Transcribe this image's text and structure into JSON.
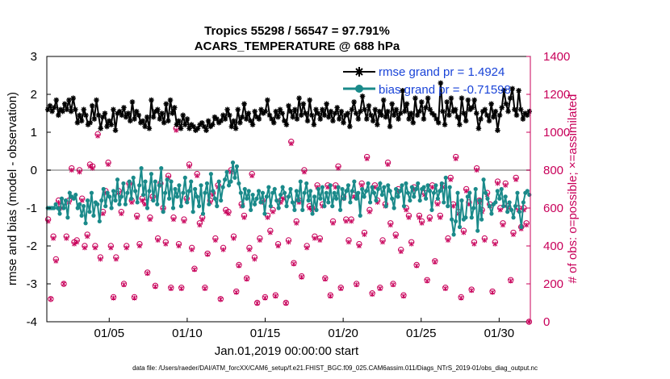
{
  "chart_data": {
    "type": "line",
    "title": "Tropics 55298 / 56547 = 97.791%",
    "subtitle": "ACARS_TEMPERATURE @ 688 hPa",
    "xlabel": "Jan.01,2019 00:00:00 start",
    "ylabel": "rmse and bias (model - observation)",
    "y2label": "# of obs: o=possible; ×=assimilated",
    "xlim": [
      1,
      32
    ],
    "ylim": [
      -4,
      3
    ],
    "y2lim": [
      0,
      1400
    ],
    "x_ticks": [
      5,
      10,
      15,
      20,
      25,
      30
    ],
    "x_tick_labels": [
      "01/05",
      "01/10",
      "01/15",
      "01/20",
      "01/25",
      "01/30"
    ],
    "y_ticks": [
      "3",
      "2",
      "1",
      "0",
      "-1",
      "-2",
      "-3",
      "-4"
    ],
    "y2_ticks": [
      "1400",
      "1200",
      "1000",
      "800",
      "600",
      "400",
      "200",
      "0"
    ],
    "zero_line": 0,
    "legend_position": "top-right",
    "series": [
      {
        "name": "rmse grand pr = 1.4924",
        "color": "#000000",
        "marker": "asterisk",
        "values": [
          1.6,
          1.7,
          1.55,
          1.65,
          1.85,
          1.45,
          1.6,
          1.55,
          1.75,
          1.6,
          1.85,
          1.55,
          1.9,
          1.6,
          1.25,
          1.45,
          1.3,
          1.6,
          1.45,
          1.2,
          1.25,
          1.7,
          1.35,
          1.85,
          1.45,
          1.1,
          1.4,
          1.5,
          1.15,
          1.3,
          1.2,
          1.6,
          1.05,
          1.5,
          1.55,
          1.45,
          1.65,
          1.4,
          1.5,
          1.3,
          1.8,
          1.35,
          1.55,
          1.45,
          1.25,
          1.3,
          1.15,
          1.4,
          1.1,
          1.85,
          1.4,
          1.55,
          1.6,
          1.35,
          1.5,
          1.25,
          1.75,
          1.3,
          1.85,
          1.5,
          1.65,
          1.2,
          1.3,
          1.1,
          1.45,
          1.2,
          1.35,
          1.1,
          1.2,
          1.15,
          1.05,
          1.1,
          1.2,
          1.25,
          1.15,
          1.05,
          1.3,
          1.15,
          1.2,
          1.4,
          1.35,
          1.25,
          1.3,
          1.45,
          1.35,
          1.6,
          1.45,
          1.15,
          1.3,
          1.1,
          1.6,
          1.25,
          1.4,
          1.75,
          1.35,
          1.5,
          1.3,
          1.2,
          1.55,
          1.4,
          1.35,
          1.6,
          1.5,
          1.55,
          1.85,
          1.45,
          1.35,
          1.25,
          1.55,
          1.4,
          1.6,
          1.5,
          1.3,
          1.2,
          1.7,
          1.55,
          1.4,
          1.6,
          1.35,
          1.9,
          1.45,
          1.75,
          1.5,
          1.3,
          1.85,
          1.45,
          1.2,
          1.6,
          1.5,
          1.35,
          1.6,
          1.45,
          1.75,
          1.4,
          1.55,
          1.3,
          1.5,
          1.65,
          1.35,
          1.55,
          1.25,
          1.45,
          1.5,
          1.15,
          1.6,
          1.8,
          1.5,
          1.35,
          1.55,
          1.95,
          1.6,
          1.35,
          1.7,
          1.45,
          1.3,
          1.6,
          1.2,
          1.55,
          1.45,
          1.85,
          1.4,
          1.55,
          1.15,
          1.75,
          1.45,
          1.6,
          1.35,
          1.5,
          2.1,
          1.55,
          1.75,
          1.35,
          1.5,
          1.25,
          1.9,
          1.45,
          1.55,
          1.8,
          1.35,
          1.65,
          1.9,
          1.6,
          1.5,
          1.45,
          1.35,
          1.25,
          2.3,
          1.55,
          1.2,
          1.8,
          1.45,
          1.9,
          1.55,
          1.6,
          1.4,
          1.2,
          1.9,
          1.5,
          1.3,
          1.85,
          1.6,
          1.65,
          1.85,
          1.5,
          1.1,
          1.35,
          1.55,
          1.6,
          1.45,
          1.3,
          1.75,
          1.4,
          1.55,
          1.05,
          1.45,
          1.65,
          2.1,
          1.75,
          1.55,
          1.9,
          2.15,
          1.6,
          1.45,
          2.1,
          1.6,
          1.35,
          1.5,
          1.45,
          1.55
        ]
      },
      {
        "name": "bias grand pr = -0.71598",
        "color": "#1a8a8a",
        "marker": "dot",
        "values": [
          -1.0,
          -1.0,
          -1.0,
          -1.0,
          -0.9,
          -1.0,
          -1.15,
          -0.75,
          -1.0,
          -0.8,
          -1.25,
          -0.6,
          -0.7,
          -0.75,
          -0.65,
          -1.0,
          -0.9,
          -1.2,
          -0.95,
          -1.4,
          -0.8,
          -1.1,
          -0.6,
          -1.2,
          -0.85,
          -0.9,
          -1.35,
          -0.8,
          -0.5,
          -0.95,
          -0.6,
          -0.7,
          -1.0,
          -0.55,
          -0.8,
          -0.25,
          -0.9,
          -0.7,
          -0.35,
          -0.9,
          -0.6,
          -0.3,
          -0.75,
          -0.2,
          -0.55,
          -0.85,
          -0.4,
          0.05,
          -0.65,
          -0.3,
          -1.0,
          -0.55,
          -0.1,
          -0.8,
          -0.3,
          -0.9,
          -0.4,
          0.05,
          -1.1,
          -0.6,
          -0.25,
          -0.75,
          -0.3,
          -1.0,
          -0.5,
          -0.7,
          -0.4,
          -0.95,
          -0.6,
          -0.2,
          -0.85,
          -0.55,
          -0.3,
          -1.1,
          -0.5,
          -0.7,
          -0.95,
          -0.4,
          -1.15,
          -0.6,
          -0.35,
          -0.9,
          -0.1,
          -0.55,
          -0.75,
          -0.95,
          -0.3,
          -0.8,
          -0.45,
          -0.25,
          -0.05,
          -0.4,
          -0.3,
          0.2,
          -0.2,
          0.1,
          -0.35,
          -0.6,
          -0.95,
          -0.5,
          -0.75,
          -0.55,
          -1.05,
          -0.65,
          -0.9,
          -0.75,
          -0.55,
          -0.85,
          -0.6,
          -1.15,
          -0.7,
          -0.45,
          -0.95,
          -0.6,
          -0.5,
          -0.8,
          -1.0,
          -0.65,
          -0.45,
          -0.6,
          -0.95,
          -0.7,
          -0.5,
          -0.85,
          -1.05,
          -0.55,
          -0.8,
          -0.3,
          -1.05,
          -0.6,
          -0.35,
          -0.8,
          -0.55,
          -1.15,
          -0.7,
          -1.05,
          -0.5,
          -0.75,
          -0.45,
          -0.95,
          -0.6,
          -0.85,
          -0.4,
          -0.95,
          -0.6,
          -0.75,
          -0.45,
          -1.05,
          -0.5,
          -0.75,
          -0.55,
          -0.4,
          -0.85,
          -0.55,
          -0.3,
          -0.75,
          -0.6,
          -1.2,
          -0.5,
          -0.7,
          -0.55,
          -0.35,
          -0.85,
          -0.45,
          -0.6,
          -0.8,
          -0.5,
          -0.35,
          -0.65,
          -0.45,
          -0.95,
          -0.4,
          -0.55,
          -0.75,
          -1.0,
          -0.5,
          -0.7,
          -0.55,
          -0.4,
          -0.95,
          -0.35,
          -0.6,
          -0.8,
          -0.45,
          -0.7,
          -0.5,
          -0.35,
          -0.8,
          -0.5,
          -0.45,
          -0.75,
          -0.4,
          -0.55,
          -1.05,
          -0.6,
          -0.4,
          -0.75,
          -0.55,
          -0.35,
          -0.85,
          -0.2,
          -0.95,
          -0.45,
          -1.3,
          -1.7,
          -1.35,
          -0.6,
          -1.5,
          -0.8,
          -1.3,
          -1.25,
          -0.7,
          -0.6,
          -1.25,
          -1.0,
          -0.5,
          -1.6,
          -0.8,
          -1.3,
          -0.25,
          -0.6,
          -0.75,
          -0.95,
          -1.15,
          -0.9,
          -0.85,
          -0.55,
          -0.75,
          -0.5,
          -0.95,
          -0.7,
          -1.1,
          -0.85,
          -1.05,
          -1.25,
          -0.95,
          -0.6,
          -1.1,
          -1.5,
          -0.85,
          -0.6,
          -0.55,
          -0.65
        ]
      },
      {
        "name": "possible",
        "color": "#c8005a",
        "marker": "circle",
        "axis": "right",
        "values": [
          540,
          120,
          450,
          330,
          640,
          610,
          200,
          450,
          640,
          810,
          420,
          430,
          800,
          650,
          400,
          460,
          830,
          820,
          400,
          990,
          340,
          580,
          690,
          840,
          400,
          130,
          340,
          690,
          580,
          200,
          400,
          730,
          640,
          130,
          560,
          410,
          650,
          630,
          260,
          550,
          660,
          190,
          440,
          730,
          600,
          420,
          770,
          180,
          550,
          1020,
          410,
          180,
          540,
          650,
          830,
          390,
          280,
          780,
          520,
          550,
          180,
          360,
          640,
          680,
          440,
          720,
          120,
          390,
          590,
          580,
          800,
          450,
          160,
          300,
          620,
          560,
          230,
          390,
          780,
          340,
          100,
          440,
          640,
          130,
          560,
          480,
          590,
          140,
          410,
          640,
          660,
          100,
          430,
          950,
          310,
          530,
          640,
          240,
          800,
          400,
          610,
          600,
          450,
          720,
          440,
          620,
          230,
          720,
          140,
          530,
          720,
          820,
          180,
          660,
          540,
          430,
          540,
          670,
          200,
          410,
          730,
          470,
          870,
          590,
          150,
          720,
          640,
          180,
          430,
          620,
          840,
          520,
          200,
          460,
          700,
          380,
          140,
          600,
          560,
          420,
          710,
          300,
          560,
          530,
          680,
          220,
          550,
          720,
          320,
          630,
          560,
          720,
          180,
          440,
          760,
          620,
          870,
          580,
          130,
          480,
          700,
          630,
          170,
          420,
          810,
          640,
          590,
          440,
          680,
          620,
          160,
          420,
          740,
          600,
          520,
          730,
          610,
          220,
          470,
          760,
          600,
          500,
          600,
          520,
          0
        ]
      },
      {
        "name": "assimilated",
        "color": "#c8005a",
        "marker": "x",
        "axis": "right",
        "values": [
          530,
          120,
          440,
          320,
          630,
          600,
          200,
          440,
          630,
          800,
          410,
          420,
          790,
          640,
          390,
          450,
          820,
          810,
          390,
          980,
          330,
          570,
          680,
          830,
          390,
          125,
          330,
          680,
          570,
          195,
          390,
          720,
          630,
          125,
          550,
          400,
          640,
          620,
          255,
          540,
          650,
          185,
          430,
          720,
          590,
          410,
          760,
          175,
          540,
          1010,
          400,
          175,
          530,
          640,
          820,
          380,
          275,
          770,
          510,
          540,
          175,
          355,
          630,
          670,
          430,
          710,
          118,
          380,
          580,
          570,
          790,
          440,
          155,
          295,
          610,
          550,
          225,
          380,
          770,
          330,
          98,
          430,
          630,
          125,
          550,
          470,
          580,
          135,
          400,
          630,
          650,
          98,
          420,
          940,
          305,
          520,
          630,
          235,
          790,
          390,
          600,
          590,
          440,
          710,
          430,
          610,
          225,
          710,
          135,
          520,
          710,
          810,
          175,
          650,
          530,
          420,
          530,
          660,
          195,
          400,
          720,
          460,
          860,
          580,
          145,
          710,
          630,
          175,
          420,
          610,
          830,
          510,
          195,
          450,
          690,
          370,
          135,
          590,
          550,
          410,
          700,
          295,
          550,
          520,
          670,
          215,
          540,
          710,
          315,
          620,
          550,
          710,
          175,
          430,
          750,
          610,
          860,
          570,
          125,
          470,
          690,
          620,
          165,
          410,
          800,
          630,
          580,
          430,
          670,
          610,
          155,
          410,
          730,
          590,
          510,
          720,
          600,
          215,
          460,
          750,
          590,
          490,
          590,
          510,
          0
        ]
      }
    ]
  },
  "footer": {
    "data_file": "data file: /Users/raeder/DAI/ATM_forcXX/CAM6_setup/f.e21.FHIST_BGC.f09_025.CAM6assim.011/Diags_NTrS_2019-01/obs_diag_output.nc"
  }
}
